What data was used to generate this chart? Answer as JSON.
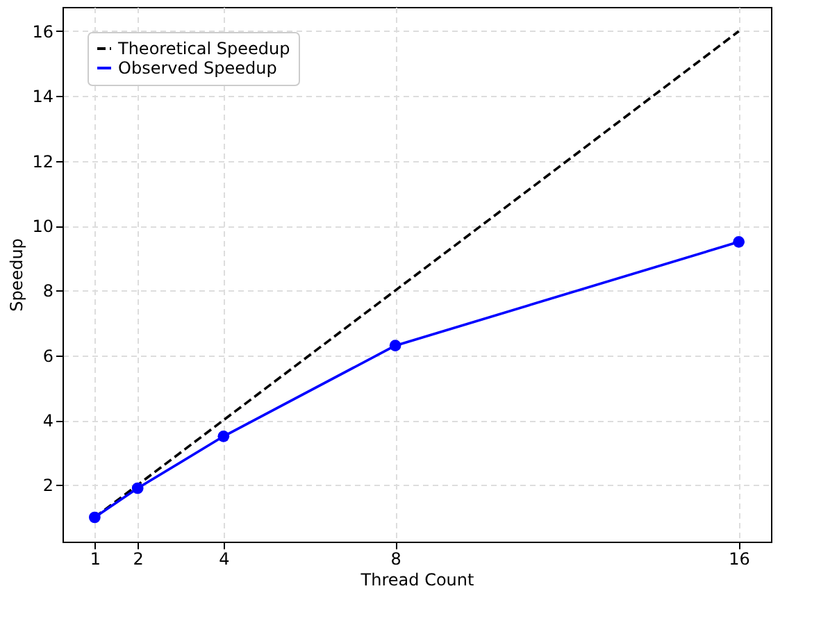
{
  "chart_data": {
    "type": "line",
    "xlabel": "Thread Count",
    "ylabel": "Speedup",
    "x": [
      1,
      2,
      4,
      8,
      16
    ],
    "series": [
      {
        "name": "Theoretical Speedup",
        "color": "#000000",
        "values": [
          1,
          2,
          4,
          8,
          16
        ],
        "line_style": "dashed",
        "marker": "none"
      },
      {
        "name": "Observed Speedup",
        "color": "#0000ff",
        "values": [
          1,
          1.9,
          3.5,
          6.3,
          9.5
        ],
        "line_style": "solid",
        "marker": "circle"
      }
    ],
    "xlim": [
      0.25,
      16.75
    ],
    "ylim": [
      0.25,
      16.75
    ],
    "xticks": [
      1,
      2,
      4,
      8,
      16
    ],
    "yticks": [
      2,
      4,
      6,
      8,
      10,
      12,
      14,
      16
    ],
    "grid": true,
    "legend": "top left"
  }
}
